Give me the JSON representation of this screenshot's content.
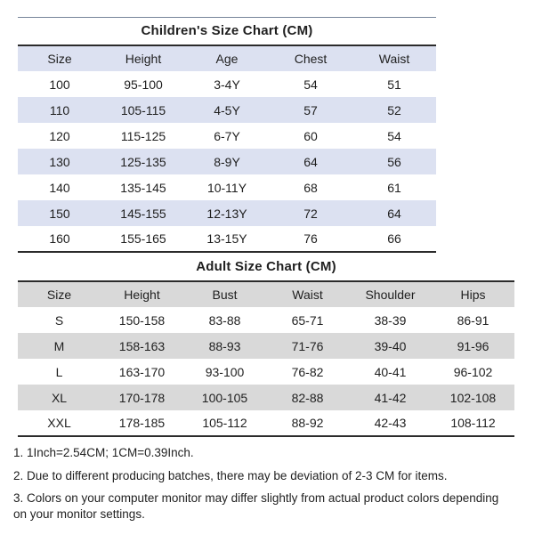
{
  "children_chart": {
    "title": "Children's Size Chart (CM)",
    "headers": [
      "Size",
      "Height",
      "Age",
      "Chest",
      "Waist"
    ],
    "rows": [
      [
        "100",
        "95-100",
        "3-4Y",
        "54",
        "51"
      ],
      [
        "110",
        "105-115",
        "4-5Y",
        "57",
        "52"
      ],
      [
        "120",
        "115-125",
        "6-7Y",
        "60",
        "54"
      ],
      [
        "130",
        "125-135",
        "8-9Y",
        "64",
        "56"
      ],
      [
        "140",
        "135-145",
        "10-11Y",
        "68",
        "61"
      ],
      [
        "150",
        "145-155",
        "12-13Y",
        "72",
        "64"
      ],
      [
        "160",
        "155-165",
        "13-15Y",
        "76",
        "66"
      ]
    ]
  },
  "adult_chart": {
    "title": "Adult Size Chart (CM)",
    "headers": [
      "Size",
      "Height",
      "Bust",
      "Waist",
      "Shoulder",
      "Hips"
    ],
    "rows": [
      [
        "S",
        "150-158",
        "83-88",
        "65-71",
        "38-39",
        "86-91"
      ],
      [
        "M",
        "158-163",
        "88-93",
        "71-76",
        "39-40",
        "91-96"
      ],
      [
        "L",
        "163-170",
        "93-100",
        "76-82",
        "40-41",
        "96-102"
      ],
      [
        "XL",
        "170-178",
        "100-105",
        "82-88",
        "41-42",
        "102-108"
      ],
      [
        "XXL",
        "178-185",
        "105-112",
        "88-92",
        "42-43",
        "108-112"
      ]
    ]
  },
  "notes": [
    "1. 1Inch=2.54CM; 1CM=0.39Inch.",
    "2. Due to different producing batches, there may be deviation of 2-3 CM for items.",
    "3. Colors on your computer monitor may differ slightly from actual product colors depending on your monitor settings."
  ],
  "colors": {
    "children_stripe": "#dce1f1",
    "adult_stripe": "#d9d9d9",
    "rule_dark": "#2b2b2b",
    "hairline": "#76849a",
    "text": "#1f1f1f",
    "background": "#ffffff"
  }
}
